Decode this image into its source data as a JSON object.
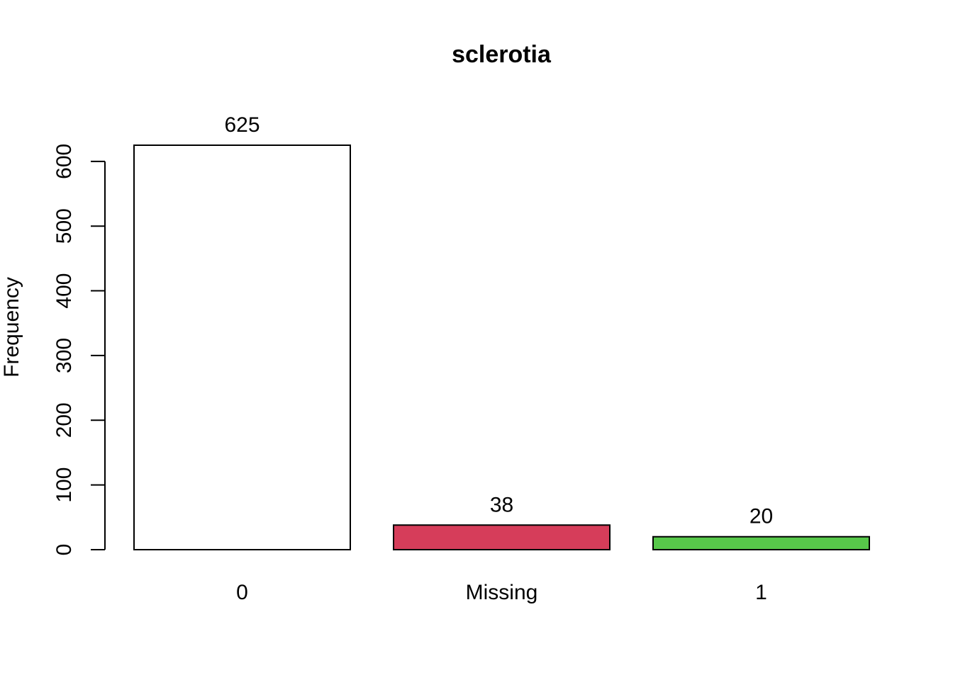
{
  "chart_data": {
    "type": "bar",
    "title": "sclerotia",
    "xlabel": "",
    "ylabel": "Frequency",
    "ylim": [
      0,
      625
    ],
    "yticks": [
      0,
      100,
      200,
      300,
      400,
      500,
      600
    ],
    "grid": false,
    "categories": [
      "0",
      "Missing",
      "1"
    ],
    "values": [
      625,
      38,
      20
    ],
    "value_labels": [
      "625",
      "38",
      "20"
    ],
    "colors": [
      "#FFFFFF",
      "#D63D5A",
      "#57C84A"
    ]
  }
}
